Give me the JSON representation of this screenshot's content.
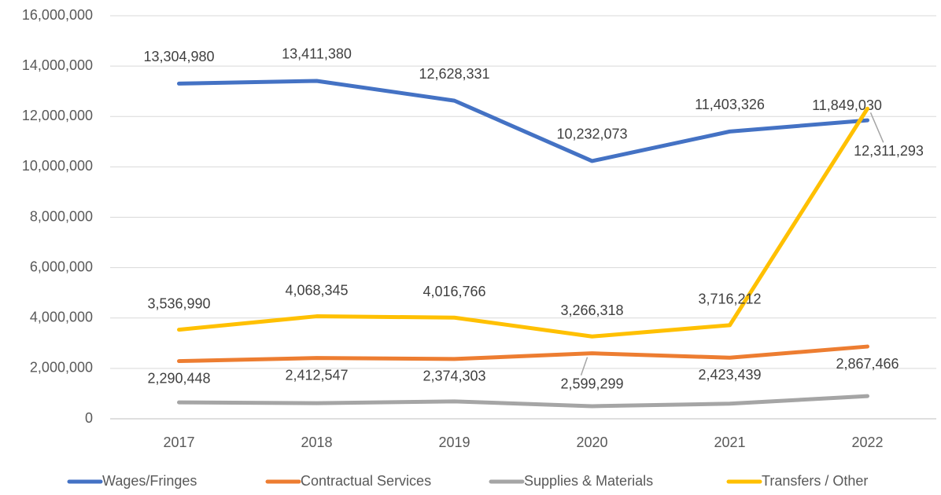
{
  "chart_data": {
    "type": "line",
    "categories": [
      "2017",
      "2018",
      "2019",
      "2020",
      "2021",
      "2022"
    ],
    "series": [
      {
        "name": "Wages/Fringes",
        "color": "#4472c4",
        "values": [
          13304980,
          13411380,
          12628331,
          10232073,
          11403326,
          11849030
        ],
        "value_labels": [
          "13,304,980",
          "13,411,380",
          "12,628,331",
          "10,232,073",
          "11,403,326",
          "11,849,030"
        ]
      },
      {
        "name": "Contractual Services",
        "color": "#ed7d31",
        "values": [
          2290448,
          2412547,
          2374303,
          2599299,
          2423439,
          2867466
        ],
        "value_labels": [
          "2,290,448",
          "2,412,547",
          "2,374,303",
          "2,599,299",
          "2,423,439",
          "2,867,466"
        ]
      },
      {
        "name": "Supplies & Materials",
        "color": "#a5a5a5",
        "values": [
          650000,
          620000,
          690000,
          500000,
          600000,
          900000
        ]
      },
      {
        "name": "Transfers / Other",
        "color": "#ffc000",
        "values": [
          3536990,
          4068345,
          4016766,
          3266318,
          3716212,
          12311293
        ],
        "value_labels": [
          "3,536,990",
          "4,068,345",
          "4,016,766",
          "3,266,318",
          "3,716,212",
          "12,311,293"
        ]
      }
    ],
    "ylim": [
      0,
      16000000
    ],
    "yticks": [
      0,
      {
        "value": 2000000,
        "label": "2,000,000"
      },
      {
        "value": 4000000,
        "label": "4,000,000"
      },
      {
        "value": 6000000,
        "label": "6,000,000"
      },
      {
        "value": 8000000,
        "label": "8,000,000"
      },
      {
        "value": 10000000,
        "label": "10,000,000"
      },
      {
        "value": 12000000,
        "label": "12,000,000"
      },
      {
        "value": 14000000,
        "label": "14,000,000"
      },
      {
        "value": 16000000,
        "label": "16,000,000"
      }
    ],
    "grid": true,
    "legend": "bottom"
  }
}
